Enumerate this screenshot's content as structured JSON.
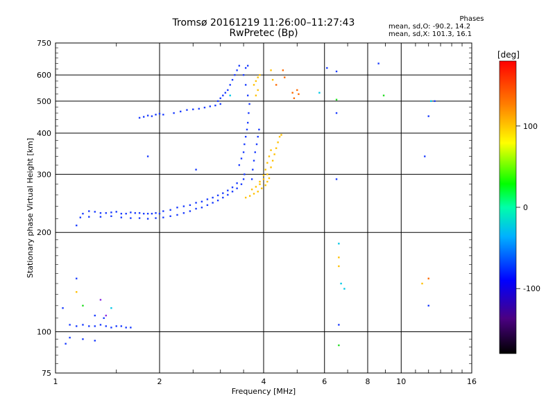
{
  "header": {
    "title": "Tromsø 20161219 11:26:00–11:27:43",
    "subtitle": "RwPretec (Bp)"
  },
  "phases": {
    "title": "Phases",
    "line_o": "mean, sd,O: -90.2, 14.2",
    "line_x": "mean, sd,X: 101.3, 16.1"
  },
  "colorbar": {
    "label": "[deg]",
    "ticks": [
      {
        "value": 100,
        "label": "100"
      },
      {
        "value": 0,
        "label": "0"
      },
      {
        "value": -100,
        "label": "-100"
      }
    ],
    "range": [
      -180,
      180
    ]
  },
  "chart_data": {
    "type": "scatter",
    "title": "Tromsø 20161219 11:26:00–11:27:43",
    "subtitle": "RwPretec (Bp)",
    "xlabel": "Frequency [MHz]",
    "ylabel": "Stationary phase Virtual Height [km]",
    "x_scale": "log",
    "y_scale": "log",
    "xlim": [
      1,
      16
    ],
    "ylim": [
      75,
      750
    ],
    "x_ticks": [
      {
        "value": 1,
        "label": "1"
      },
      {
        "value": 2,
        "label": "2"
      },
      {
        "value": 4,
        "label": "4"
      },
      {
        "value": 6,
        "label": "6"
      },
      {
        "value": 8,
        "label": "8"
      },
      {
        "value": 10,
        "label": "10"
      },
      {
        "value": 16,
        "label": "16"
      }
    ],
    "y_ticks": [
      {
        "value": 75,
        "label": "75"
      },
      {
        "value": 100,
        "label": "100"
      },
      {
        "value": 200,
        "label": "200"
      },
      {
        "value": 300,
        "label": "300"
      },
      {
        "value": 400,
        "label": "400"
      },
      {
        "value": 500,
        "label": "500"
      },
      {
        "value": 600,
        "label": "600"
      },
      {
        "value": 750,
        "label": "750"
      }
    ],
    "grid": true,
    "series": [
      {
        "points": [
          [
            1.1,
            105
          ],
          [
            1.15,
            104
          ],
          [
            1.2,
            105
          ],
          [
            1.25,
            104
          ],
          [
            1.3,
            104
          ],
          [
            1.35,
            105
          ],
          [
            1.4,
            104
          ],
          [
            1.45,
            103
          ],
          [
            1.5,
            104
          ],
          [
            1.55,
            104
          ],
          [
            1.6,
            103
          ],
          [
            1.65,
            103
          ],
          [
            1.1,
            96
          ],
          [
            1.2,
            95
          ],
          [
            1.3,
            94
          ],
          [
            1.07,
            92
          ],
          [
            1.05,
            118
          ],
          [
            1.15,
            145
          ],
          [
            1.3,
            112
          ],
          [
            1.38,
            110
          ],
          [
            1.15,
            210
          ],
          [
            1.18,
            222
          ],
          [
            1.2,
            228
          ],
          [
            1.25,
            232
          ],
          [
            1.3,
            231
          ],
          [
            1.35,
            229
          ],
          [
            1.4,
            229
          ],
          [
            1.45,
            230
          ],
          [
            1.5,
            231
          ],
          [
            1.55,
            228
          ],
          [
            1.6,
            228
          ],
          [
            1.65,
            230
          ],
          [
            1.7,
            229
          ],
          [
            1.75,
            229
          ],
          [
            1.8,
            228
          ],
          [
            1.85,
            228
          ],
          [
            1.9,
            228
          ],
          [
            1.95,
            229
          ],
          [
            2.0,
            228
          ],
          [
            1.25,
            223
          ],
          [
            1.35,
            223
          ],
          [
            1.45,
            224
          ],
          [
            1.55,
            222
          ],
          [
            1.65,
            221
          ],
          [
            1.75,
            221
          ],
          [
            1.85,
            220
          ],
          [
            1.95,
            221
          ],
          [
            2.05,
            222
          ],
          [
            2.15,
            224
          ],
          [
            2.25,
            226
          ],
          [
            2.35,
            229
          ],
          [
            2.45,
            232
          ],
          [
            2.55,
            236
          ],
          [
            2.05,
            232
          ],
          [
            2.15,
            234
          ],
          [
            2.25,
            238
          ],
          [
            2.35,
            240
          ],
          [
            2.45,
            242
          ],
          [
            2.55,
            246
          ],
          [
            2.65,
            248
          ],
          [
            2.75,
            252
          ],
          [
            2.85,
            255
          ],
          [
            2.95,
            259
          ],
          [
            3.05,
            263
          ],
          [
            3.15,
            268
          ],
          [
            3.25,
            274
          ],
          [
            3.35,
            282
          ],
          [
            2.65,
            238
          ],
          [
            2.75,
            242
          ],
          [
            2.85,
            246
          ],
          [
            2.95,
            250
          ],
          [
            3.05,
            255
          ],
          [
            3.15,
            260
          ],
          [
            3.25,
            266
          ],
          [
            3.35,
            272
          ],
          [
            3.45,
            280
          ],
          [
            3.5,
            290
          ],
          [
            3.52,
            300
          ],
          [
            3.4,
            320
          ],
          [
            3.45,
            335
          ],
          [
            3.5,
            350
          ],
          [
            3.52,
            370
          ],
          [
            3.55,
            390
          ],
          [
            3.58,
            410
          ],
          [
            3.6,
            430
          ],
          [
            3.62,
            460
          ],
          [
            3.64,
            490
          ],
          [
            3.6,
            520
          ],
          [
            3.55,
            560
          ],
          [
            3.5,
            600
          ],
          [
            3.55,
            630
          ],
          [
            3.6,
            640
          ],
          [
            3.7,
            290
          ],
          [
            3.72,
            310
          ],
          [
            3.75,
            330
          ],
          [
            3.78,
            350
          ],
          [
            3.82,
            370
          ],
          [
            3.85,
            390
          ],
          [
            3.88,
            410
          ],
          [
            1.75,
            445
          ],
          [
            1.8,
            448
          ],
          [
            1.85,
            452
          ],
          [
            1.9,
            450
          ],
          [
            1.95,
            455
          ],
          [
            2.0,
            458
          ],
          [
            2.05,
            455
          ],
          [
            2.2,
            460
          ],
          [
            2.3,
            465
          ],
          [
            2.4,
            470
          ],
          [
            2.5,
            472
          ],
          [
            2.6,
            474
          ],
          [
            2.7,
            478
          ],
          [
            2.8,
            482
          ],
          [
            2.9,
            485
          ],
          [
            3.0,
            490
          ],
          [
            2.95,
            500
          ],
          [
            3.0,
            510
          ],
          [
            3.05,
            520
          ],
          [
            3.1,
            530
          ],
          [
            3.15,
            540
          ],
          [
            3.2,
            560
          ],
          [
            3.25,
            580
          ],
          [
            3.3,
            600
          ],
          [
            3.35,
            620
          ],
          [
            3.4,
            640
          ],
          [
            2.55,
            310
          ],
          [
            1.85,
            340
          ],
          [
            6.1,
            630
          ],
          [
            6.5,
            615
          ],
          [
            6.5,
            460
          ],
          [
            8.6,
            650
          ],
          [
            11.7,
            340
          ],
          [
            12.0,
            450
          ],
          [
            12.0,
            120
          ],
          [
            6.5,
            290
          ],
          [
            6.6,
            105
          ],
          [
            12.5,
            500
          ]
        ]
      },
      {
        "points": [
          [
            3.55,
            255
          ],
          [
            3.65,
            258
          ],
          [
            3.75,
            262
          ],
          [
            3.85,
            266
          ],
          [
            3.95,
            272
          ],
          [
            4.05,
            278
          ],
          [
            4.1,
            285
          ],
          [
            4.15,
            292
          ],
          [
            3.9,
            280
          ],
          [
            4.0,
            290
          ],
          [
            4.1,
            300
          ],
          [
            4.2,
            315
          ],
          [
            4.25,
            330
          ],
          [
            4.3,
            345
          ],
          [
            4.35,
            360
          ],
          [
            4.4,
            375
          ],
          [
            4.45,
            390
          ],
          [
            4.5,
            395
          ],
          [
            3.7,
            270
          ],
          [
            3.8,
            275
          ],
          [
            3.9,
            285
          ],
          [
            4.0,
            298
          ],
          [
            4.05,
            310
          ],
          [
            4.1,
            325
          ],
          [
            4.15,
            340
          ],
          [
            4.2,
            355
          ],
          [
            3.75,
            560
          ],
          [
            3.8,
            575
          ],
          [
            3.85,
            590
          ],
          [
            3.9,
            600
          ],
          [
            3.85,
            540
          ],
          [
            3.8,
            520
          ],
          [
            1.15,
            132
          ],
          [
            4.2,
            620
          ],
          [
            4.25,
            580
          ],
          [
            6.6,
            168
          ],
          [
            6.6,
            158
          ],
          [
            11.5,
            140
          ]
        ]
      },
      {
        "points": [
          [
            4.55,
            620
          ],
          [
            4.6,
            590
          ],
          [
            4.85,
            530
          ],
          [
            4.9,
            510
          ],
          [
            5.0,
            540
          ],
          [
            5.05,
            525
          ],
          [
            4.35,
            560
          ],
          [
            12.0,
            145
          ]
        ]
      },
      {
        "points": [
          [
            6.6,
            185
          ],
          [
            6.7,
            140
          ],
          [
            6.85,
            135
          ],
          [
            3.2,
            520
          ],
          [
            1.45,
            118
          ],
          [
            5.8,
            530
          ],
          [
            12.2,
            500
          ]
        ]
      },
      {
        "points": [
          [
            6.6,
            91
          ],
          [
            8.9,
            520
          ],
          [
            6.5,
            505
          ],
          [
            1.2,
            120
          ]
        ]
      },
      {
        "points": [
          [
            1.35,
            125
          ],
          [
            1.4,
            112
          ]
        ]
      }
    ]
  }
}
